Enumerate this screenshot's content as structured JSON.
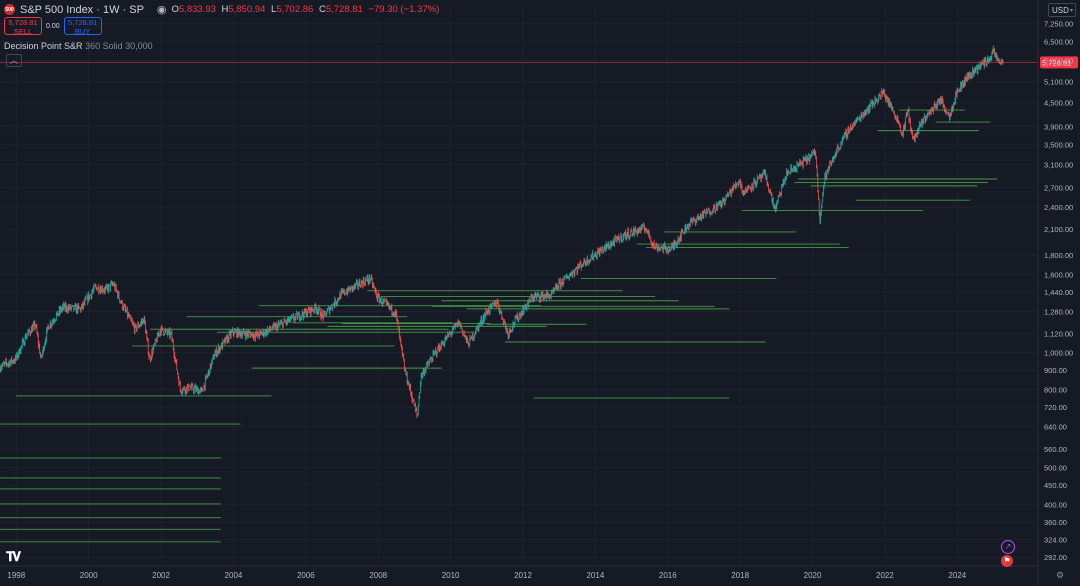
{
  "header": {
    "logo": "500",
    "title": "S&P 500 Index · 1W · SP",
    "eye_icon": "eye-icon",
    "o_label": "O",
    "o": "5,833.93",
    "h_label": "H",
    "h": "5,850.94",
    "l_label": "L",
    "l": "5,702.86",
    "c_label": "C",
    "c": "5,728.81",
    "change": "−79.30 (−1.37%)"
  },
  "trade": {
    "sell_price": "5,728.81",
    "sell_label": "SELL",
    "spread": "0.00",
    "buy_price": "5,728.81",
    "buy_label": "BUY"
  },
  "indicator": {
    "name": "Decision Point S&R",
    "params": "360 Solid 30,000"
  },
  "currency": "USD",
  "colors": {
    "background": "#161a25",
    "up": "#26a69a",
    "down": "#ef5350",
    "sr_line": "#4caf50",
    "price_line": "#f23645"
  },
  "chart_data": {
    "type": "candlestick",
    "title": "S&P 500 Index · 1W · SP",
    "scale": "log",
    "ylim": [
      280,
      7900
    ],
    "xlim": [
      1997.55,
      2025.4
    ],
    "last_price": 5728.81,
    "last_price_label": "5,728.81",
    "x_ticks": [
      1998,
      2000,
      2002,
      2004,
      2006,
      2008,
      2010,
      2012,
      2014,
      2016,
      2018,
      2020,
      2022,
      2024
    ],
    "x_tick_labels": [
      "1998",
      "2000",
      "2002",
      "2004",
      "2006",
      "2008",
      "2010",
      "2012",
      "2014",
      "2016",
      "2018",
      "2020",
      "2022",
      "2024"
    ],
    "y_ticks": [
      292,
      324,
      360,
      400,
      450,
      500,
      560,
      640,
      720,
      800,
      900,
      1000,
      1120,
      1280,
      1440,
      1600,
      1800,
      2100,
      2400,
      2700,
      3100,
      3500,
      3900,
      4500,
      5100,
      5800,
      6500,
      7250
    ],
    "y_tick_labels": [
      "292.00",
      "324.00",
      "360.00",
      "400.00",
      "450.00",
      "500.00",
      "560.00",
      "640.00",
      "720.00",
      "800.00",
      "900.00",
      "1,000.00",
      "1,120.00",
      "1,280.00",
      "1,440.00",
      "1,600.00",
      "1,800.00",
      "2,100.00",
      "2,400.00",
      "2,700.00",
      "3,100.00",
      "3,500.00",
      "3,900.00",
      "4,500.00",
      "5,100.00",
      "5,800.00",
      "6,500.00",
      "7,250.00"
    ],
    "price_path": [
      [
        1997.55,
        915
      ],
      [
        1998.0,
        960
      ],
      [
        1998.3,
        1110
      ],
      [
        1998.55,
        1180
      ],
      [
        1998.7,
        960
      ],
      [
        1998.9,
        1170
      ],
      [
        1999.3,
        1310
      ],
      [
        1999.8,
        1300
      ],
      [
        2000.2,
        1480
      ],
      [
        2000.5,
        1460
      ],
      [
        2000.7,
        1510
      ],
      [
        2000.95,
        1330
      ],
      [
        2001.3,
        1150
      ],
      [
        2001.55,
        1220
      ],
      [
        2001.7,
        960
      ],
      [
        2002.0,
        1150
      ],
      [
        2002.3,
        1110
      ],
      [
        2002.55,
        800
      ],
      [
        2002.8,
        810
      ],
      [
        2003.15,
        790
      ],
      [
        2003.5,
        990
      ],
      [
        2004.0,
        1130
      ],
      [
        2004.7,
        1110
      ],
      [
        2005.3,
        1180
      ],
      [
        2006.3,
        1310
      ],
      [
        2006.5,
        1240
      ],
      [
        2007.0,
        1420
      ],
      [
        2007.55,
        1520
      ],
      [
        2007.8,
        1560
      ],
      [
        2008.0,
        1390
      ],
      [
        2008.5,
        1270
      ],
      [
        2008.75,
        900
      ],
      [
        2009.1,
        680
      ],
      [
        2009.2,
        870
      ],
      [
        2009.6,
        1000
      ],
      [
        2010.25,
        1200
      ],
      [
        2010.5,
        1050
      ],
      [
        2011.0,
        1270
      ],
      [
        2011.3,
        1360
      ],
      [
        2011.6,
        1120
      ],
      [
        2011.8,
        1210
      ],
      [
        2012.3,
        1400
      ],
      [
        2012.8,
        1410
      ],
      [
        2013.0,
        1500
      ],
      [
        2013.6,
        1690
      ],
      [
        2014.0,
        1800
      ],
      [
        2014.8,
        2020
      ],
      [
        2015.4,
        2120
      ],
      [
        2015.65,
        1890
      ],
      [
        2016.1,
        1860
      ],
      [
        2016.6,
        2170
      ],
      [
        2016.9,
        2260
      ],
      [
        2017.5,
        2450
      ],
      [
        2018.0,
        2820
      ],
      [
        2018.1,
        2620
      ],
      [
        2018.7,
        2920
      ],
      [
        2018.98,
        2360
      ],
      [
        2019.3,
        2930
      ],
      [
        2019.95,
        3240
      ],
      [
        2020.1,
        3350
      ],
      [
        2020.22,
        2240
      ],
      [
        2020.35,
        2860
      ],
      [
        2020.7,
        3390
      ],
      [
        2021.0,
        3800
      ],
      [
        2021.6,
        4400
      ],
      [
        2021.98,
        4790
      ],
      [
        2022.4,
        4000
      ],
      [
        2022.5,
        3700
      ],
      [
        2022.65,
        4300
      ],
      [
        2022.8,
        3580
      ],
      [
        2023.1,
        4080
      ],
      [
        2023.55,
        4580
      ],
      [
        2023.8,
        4150
      ],
      [
        2024.0,
        4780
      ],
      [
        2024.3,
        5250
      ],
      [
        2024.6,
        5580
      ],
      [
        2024.9,
        5850
      ],
      [
        2025.0,
        6100
      ],
      [
        2025.1,
        5900
      ],
      [
        2025.2,
        5700
      ],
      [
        2025.25,
        5850
      ],
      [
        2025.28,
        5728.81
      ]
    ],
    "support_resistance": [
      {
        "x0": 1997.55,
        "x1": 2003.65,
        "y": 320
      },
      {
        "x0": 1997.55,
        "x1": 2003.65,
        "y": 345
      },
      {
        "x0": 1997.55,
        "x1": 2003.65,
        "y": 370
      },
      {
        "x0": 1997.55,
        "x1": 2003.65,
        "y": 402
      },
      {
        "x0": 1997.55,
        "x1": 2003.65,
        "y": 440
      },
      {
        "x0": 1997.55,
        "x1": 2003.65,
        "y": 470
      },
      {
        "x0": 1997.55,
        "x1": 2003.65,
        "y": 530
      },
      {
        "x0": 1997.55,
        "x1": 2004.2,
        "y": 650
      },
      {
        "x0": 1998.0,
        "x1": 2005.05,
        "y": 770
      },
      {
        "x0": 2001.2,
        "x1": 2008.45,
        "y": 1040
      },
      {
        "x0": 2001.7,
        "x1": 2009.95,
        "y": 1150
      },
      {
        "x0": 2002.7,
        "x1": 2008.8,
        "y": 1240
      },
      {
        "x0": 2003.55,
        "x1": 2010.7,
        "y": 1130
      },
      {
        "x0": 2004.5,
        "x1": 2009.75,
        "y": 910
      },
      {
        "x0": 2004.7,
        "x1": 2012.5,
        "y": 1325
      },
      {
        "x0": 2005.6,
        "x1": 2010.05,
        "y": 1195
      },
      {
        "x0": 2006.6,
        "x1": 2012.65,
        "y": 1170
      },
      {
        "x0": 2007.0,
        "x1": 2011.1,
        "y": 1190
      },
      {
        "x0": 2007.7,
        "x1": 2014.75,
        "y": 1450
      },
      {
        "x0": 2008.1,
        "x1": 2015.65,
        "y": 1400
      },
      {
        "x0": 2009.5,
        "x1": 2017.3,
        "y": 1320
      },
      {
        "x0": 2009.75,
        "x1": 2016.3,
        "y": 1365
      },
      {
        "x0": 2010.45,
        "x1": 2017.7,
        "y": 1300
      },
      {
        "x0": 2011.0,
        "x1": 2013.75,
        "y": 1185
      },
      {
        "x0": 2011.5,
        "x1": 2018.7,
        "y": 1065
      },
      {
        "x0": 2012.3,
        "x1": 2017.7,
        "y": 760
      },
      {
        "x0": 2013.6,
        "x1": 2019.0,
        "y": 1560
      },
      {
        "x0": 2015.15,
        "x1": 2020.75,
        "y": 1920
      },
      {
        "x0": 2015.4,
        "x1": 2021.0,
        "y": 1880
      },
      {
        "x0": 2015.9,
        "x1": 2019.55,
        "y": 2065
      },
      {
        "x0": 2018.05,
        "x1": 2023.05,
        "y": 2350
      },
      {
        "x0": 2019.5,
        "x1": 2024.85,
        "y": 2780
      },
      {
        "x0": 2019.6,
        "x1": 2025.1,
        "y": 2840
      },
      {
        "x0": 2019.95,
        "x1": 2024.55,
        "y": 2725
      },
      {
        "x0": 2021.2,
        "x1": 2024.35,
        "y": 2500
      },
      {
        "x0": 2021.8,
        "x1": 2024.6,
        "y": 3800
      },
      {
        "x0": 2022.4,
        "x1": 2024.2,
        "y": 4300
      },
      {
        "x0": 2023.4,
        "x1": 2024.9,
        "y": 4000
      }
    ]
  }
}
